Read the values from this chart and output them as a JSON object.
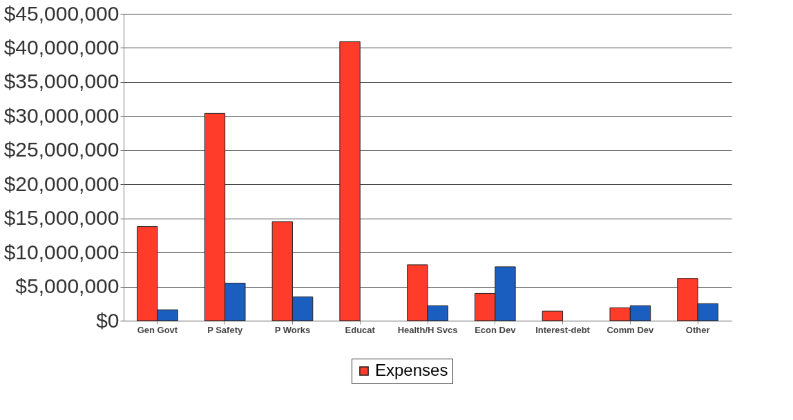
{
  "chart_data": {
    "type": "bar",
    "categories": [
      "Gen Govt",
      "P Safety",
      "P Works",
      "Educat",
      "Health/H Svcs",
      "Econ Dev",
      "Interest-debt",
      "Comm Dev",
      "Other"
    ],
    "series": [
      {
        "name": "Expenses",
        "color": "#ff3b2a",
        "values": [
          13800000,
          30400000,
          14500000,
          40900000,
          8200000,
          4000000,
          1400000,
          1900000,
          6200000
        ]
      },
      {
        "color": "#1a5fc0",
        "values": [
          1600000,
          5500000,
          3500000,
          null,
          2200000,
          7900000,
          null,
          2200000,
          2500000
        ]
      }
    ],
    "ylim": [
      0,
      45000000
    ],
    "yticks": [
      {
        "value": 0,
        "label": "$0"
      },
      {
        "value": 5000000,
        "label": "$5,000,000"
      },
      {
        "value": 10000000,
        "label": "$10,000,000"
      },
      {
        "value": 15000000,
        "label": "$15,000,000"
      },
      {
        "value": 20000000,
        "label": "$20,000,000"
      },
      {
        "value": 25000000,
        "label": "$25,000,000"
      },
      {
        "value": 30000000,
        "label": "$30,000,000"
      },
      {
        "value": 35000000,
        "label": "$35,000,000"
      },
      {
        "value": 40000000,
        "label": "$40,000,000"
      },
      {
        "value": 45000000,
        "label": "$45,000,000"
      }
    ],
    "grid": "y",
    "legend": "bottom"
  }
}
